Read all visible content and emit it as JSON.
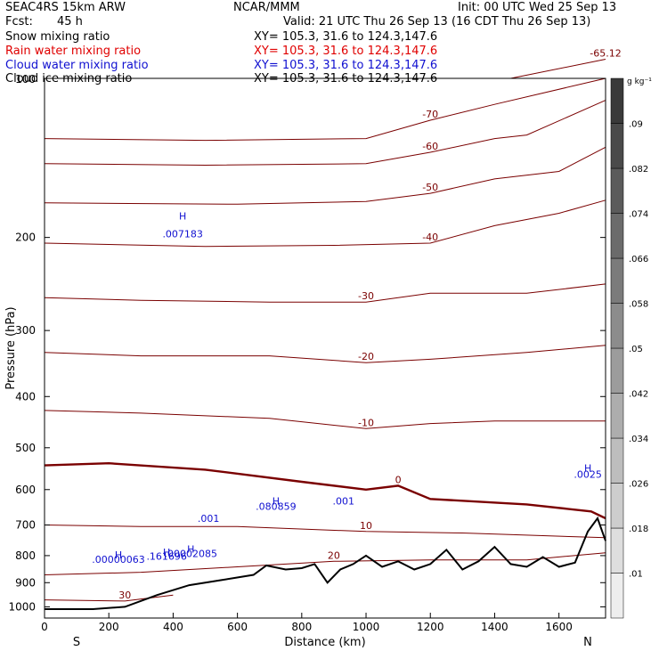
{
  "header": {
    "model": "SEAC4RS 15km ARW",
    "org": "NCAR/MMM",
    "init": "Init: 00 UTC Wed 25 Sep 13",
    "fcst_label": "Fcst:",
    "fcst_value": "45 h",
    "valid": "Valid: 21 UTC Thu 26 Sep 13 (16 CDT Thu 26 Sep 13)"
  },
  "legend": [
    {
      "name": "Snow mixing ratio",
      "xy": "XY= 105.3, 31.6 to 124.3,147.6",
      "color": "#000000"
    },
    {
      "name": "Rain water mixing ratio",
      "xy": "XY= 105.3, 31.6 to 124.3,147.6",
      "color": "#e00000"
    },
    {
      "name": "Cloud water mixing ratio",
      "xy": "XY= 105.3, 31.6 to 124.3,147.6",
      "color": "#1010d0"
    },
    {
      "name": "Cloud ice mixing ratio",
      "xy": "XY= 105.3, 31.6 to 124.3,147.6",
      "color": "#000000"
    }
  ],
  "chart_data": {
    "type": "cross-section",
    "xlabel": "Distance (km)",
    "ylabel": "Pressure (hPa)",
    "xlim": [
      0,
      1745
    ],
    "ylim": [
      1050,
      100
    ],
    "y_scale": "log",
    "x_ticks": [
      0,
      200,
      400,
      600,
      800,
      1000,
      1200,
      1400,
      1600
    ],
    "y_ticks": [
      200,
      300,
      400,
      500,
      600,
      700,
      800,
      900,
      1000
    ],
    "y_top_label": "100",
    "end_labels": {
      "left": "S",
      "right": "N"
    },
    "colorbar": {
      "units": "g kg⁻¹",
      "ticks": [
        ".01",
        ".018",
        ".026",
        ".034",
        ".042",
        ".05",
        ".058",
        ".066",
        ".074",
        ".082",
        ".09"
      ]
    },
    "terrain_pressure": [
      [
        0,
        1010
      ],
      [
        150,
        1010
      ],
      [
        250,
        1000
      ],
      [
        350,
        950
      ],
      [
        450,
        910
      ],
      [
        550,
        890
      ],
      [
        650,
        870
      ],
      [
        690,
        835
      ],
      [
        750,
        850
      ],
      [
        800,
        845
      ],
      [
        840,
        830
      ],
      [
        880,
        900
      ],
      [
        920,
        850
      ],
      [
        960,
        830
      ],
      [
        1000,
        800
      ],
      [
        1050,
        840
      ],
      [
        1100,
        820
      ],
      [
        1150,
        850
      ],
      [
        1200,
        830
      ],
      [
        1250,
        780
      ],
      [
        1300,
        850
      ],
      [
        1350,
        820
      ],
      [
        1400,
        770
      ],
      [
        1450,
        830
      ],
      [
        1500,
        840
      ],
      [
        1550,
        805
      ],
      [
        1600,
        840
      ],
      [
        1650,
        825
      ],
      [
        1690,
        720
      ],
      [
        1720,
        680
      ],
      [
        1745,
        750
      ]
    ],
    "isotherms_C": [
      {
        "label": "-70",
        "points": [
          [
            0,
            130
          ],
          [
            500,
            131
          ],
          [
            1000,
            130
          ],
          [
            1200,
            120
          ],
          [
            1400,
            112
          ],
          [
            1745,
            100
          ]
        ]
      },
      {
        "label": "-65.12",
        "points": [
          [
            1450,
            100
          ],
          [
            1745,
            92
          ]
        ]
      },
      {
        "label": "-60",
        "points": [
          [
            0,
            145
          ],
          [
            500,
            146
          ],
          [
            1000,
            145
          ],
          [
            1200,
            138
          ],
          [
            1400,
            130
          ],
          [
            1500,
            128
          ],
          [
            1745,
            110
          ]
        ]
      },
      {
        "label": "-50",
        "points": [
          [
            0,
            172
          ],
          [
            600,
            173
          ],
          [
            1000,
            171
          ],
          [
            1200,
            165
          ],
          [
            1400,
            155
          ],
          [
            1600,
            150
          ],
          [
            1745,
            135
          ]
        ]
      },
      {
        "label": "-40",
        "points": [
          [
            0,
            205
          ],
          [
            500,
            208
          ],
          [
            900,
            207
          ],
          [
            1200,
            205
          ],
          [
            1400,
            190
          ],
          [
            1600,
            180
          ],
          [
            1745,
            170
          ]
        ]
      },
      {
        "label": "-30",
        "points": [
          [
            0,
            260
          ],
          [
            300,
            263
          ],
          [
            700,
            265
          ],
          [
            1000,
            265
          ],
          [
            1200,
            255
          ],
          [
            1500,
            255
          ],
          [
            1745,
            245
          ]
        ]
      },
      {
        "label": "-20",
        "points": [
          [
            0,
            330
          ],
          [
            300,
            335
          ],
          [
            700,
            335
          ],
          [
            1000,
            345
          ],
          [
            1200,
            340
          ],
          [
            1500,
            330
          ],
          [
            1745,
            320
          ]
        ]
      },
      {
        "label": "-10",
        "points": [
          [
            0,
            425
          ],
          [
            300,
            430
          ],
          [
            700,
            440
          ],
          [
            1000,
            460
          ],
          [
            1200,
            450
          ],
          [
            1400,
            445
          ],
          [
            1745,
            445
          ]
        ]
      },
      {
        "label": "0",
        "points": [
          [
            0,
            540
          ],
          [
            200,
            535
          ],
          [
            500,
            550
          ],
          [
            800,
            580
          ],
          [
            1000,
            600
          ],
          [
            1100,
            590
          ],
          [
            1200,
            625
          ],
          [
            1500,
            640
          ],
          [
            1700,
            660
          ],
          [
            1745,
            680
          ]
        ]
      },
      {
        "label": "10",
        "points": [
          [
            0,
            700
          ],
          [
            300,
            705
          ],
          [
            600,
            705
          ],
          [
            1000,
            720
          ],
          [
            1300,
            725
          ],
          [
            1745,
            740
          ]
        ]
      },
      {
        "label": "20",
        "points": [
          [
            0,
            870
          ],
          [
            300,
            860
          ],
          [
            600,
            840
          ],
          [
            900,
            820
          ],
          [
            1200,
            815
          ],
          [
            1500,
            815
          ],
          [
            1745,
            790
          ]
        ]
      },
      {
        "label": "30",
        "points": [
          [
            0,
            970
          ],
          [
            250,
            975
          ],
          [
            400,
            950
          ]
        ]
      }
    ],
    "annotations": [
      {
        "text": "H",
        "x": 430,
        "p": 185
      },
      {
        "text": ".007183",
        "x": 430,
        "p": 200
      },
      {
        "text": "H",
        "x": 720,
        "p": 640
      },
      {
        "text": ".080859",
        "x": 720,
        "p": 655
      },
      {
        "text": ".001",
        "x": 930,
        "p": 640
      },
      {
        "text": ".001",
        "x": 510,
        "p": 690
      },
      {
        "text": "H",
        "x": 380,
        "p": 800
      },
      {
        "text": ".161696",
        "x": 380,
        "p": 815
      },
      {
        "text": "H",
        "x": 455,
        "p": 790
      },
      {
        "text": ".00002085",
        "x": 455,
        "p": 805
      },
      {
        "text": "H",
        "x": 230,
        "p": 810
      },
      {
        "text": ".00000063",
        "x": 230,
        "p": 825
      },
      {
        "text": "H",
        "x": 1690,
        "p": 555
      },
      {
        "text": ".0025",
        "x": 1690,
        "p": 570
      }
    ]
  }
}
